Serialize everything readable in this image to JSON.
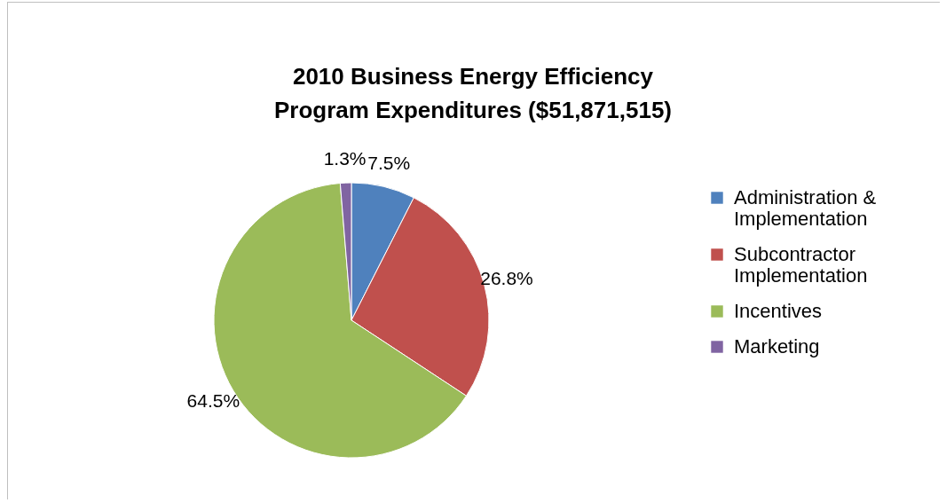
{
  "chart_data": {
    "type": "pie",
    "title": "2010 Business Energy Efficiency Program Expenditures ($51,871,515)",
    "categories": [
      "Administration & Implementation",
      "Subcontractor Implementation",
      "Incentives",
      "Marketing"
    ],
    "values": [
      7.5,
      26.8,
      64.5,
      1.3
    ],
    "colors": [
      "#4f81bd",
      "#c0504d",
      "#9bbb59",
      "#8064a2"
    ],
    "value_labels": [
      "7.5%",
      "26.8%",
      "64.5%",
      "1.3%"
    ],
    "legend": "right"
  }
}
